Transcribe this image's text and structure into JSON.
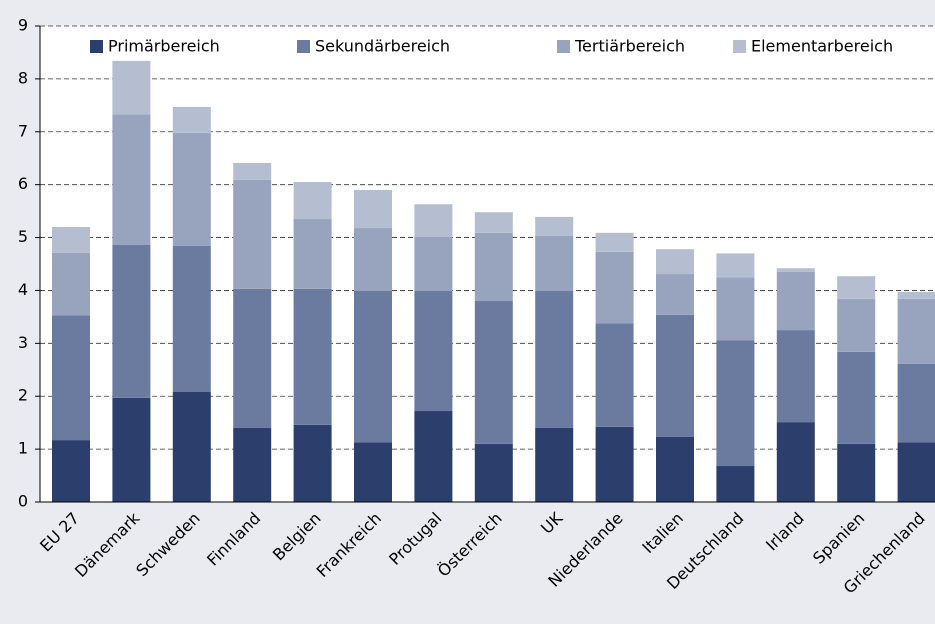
{
  "chart_data": {
    "type": "stacked_bar",
    "categories": [
      "EU 27",
      "Dänemark",
      "Schweden",
      "Finnland",
      "Belgien",
      "Frankreich",
      "Protugal",
      "Österreich",
      "UK",
      "Niederlande",
      "Italien",
      "Deutschland",
      "Irland",
      "Spanien",
      "Griechenland"
    ],
    "series": [
      {
        "name": "Primärbereich",
        "color": "#2c3f6c",
        "values": [
          1.17,
          1.97,
          2.08,
          1.4,
          1.46,
          1.13,
          1.72,
          1.1,
          1.4,
          1.42,
          1.23,
          0.68,
          1.51,
          1.1,
          1.13
        ]
      },
      {
        "name": "Sekundärbereich",
        "color": "#6b7b9f",
        "values": [
          2.36,
          2.89,
          2.76,
          2.63,
          2.57,
          2.86,
          2.27,
          2.7,
          2.59,
          1.96,
          2.31,
          2.38,
          1.74,
          1.74,
          1.48
        ]
      },
      {
        "name": "Tertiärbereich",
        "color": "#98a3be",
        "values": [
          1.18,
          2.47,
          2.14,
          2.06,
          1.32,
          1.19,
          1.02,
          1.29,
          1.04,
          1.35,
          0.77,
          1.19,
          1.1,
          1.0,
          1.23
        ]
      },
      {
        "name": "Elementarbereich",
        "color": "#b5bed1",
        "values": [
          0.49,
          1.01,
          0.49,
          0.32,
          0.7,
          0.72,
          0.62,
          0.39,
          0.36,
          0.36,
          0.47,
          0.45,
          0.07,
          0.43,
          0.13
        ]
      }
    ],
    "ylim": [
      0,
      9
    ],
    "yticks": [
      0,
      1,
      2,
      3,
      4,
      5,
      6,
      7,
      8,
      9
    ],
    "grid": true,
    "legend": "top"
  }
}
